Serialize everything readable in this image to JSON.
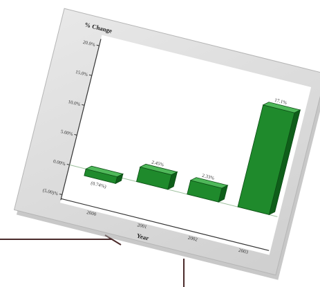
{
  "chart_data": {
    "type": "bar",
    "style": "3d",
    "title": "",
    "ylabel": "% Change",
    "xlabel": "Year",
    "categories": [
      "2000",
      "2001",
      "2002",
      "2003"
    ],
    "values": [
      -0.74,
      2.45,
      2.33,
      17.1
    ],
    "data_labels": [
      "(0.74%)",
      "2.45%",
      "2.33%",
      "17.1%"
    ],
    "y_ticks": [
      -5,
      0,
      5,
      10,
      15,
      20
    ],
    "y_tick_labels": [
      "(5.00)%",
      "0.00%",
      "5.00%",
      "10.0%",
      "15.0%",
      "20.0%"
    ],
    "ylim": [
      -5,
      20
    ],
    "grid": false,
    "legend": "none",
    "bar_color": "#1f8a2c"
  }
}
